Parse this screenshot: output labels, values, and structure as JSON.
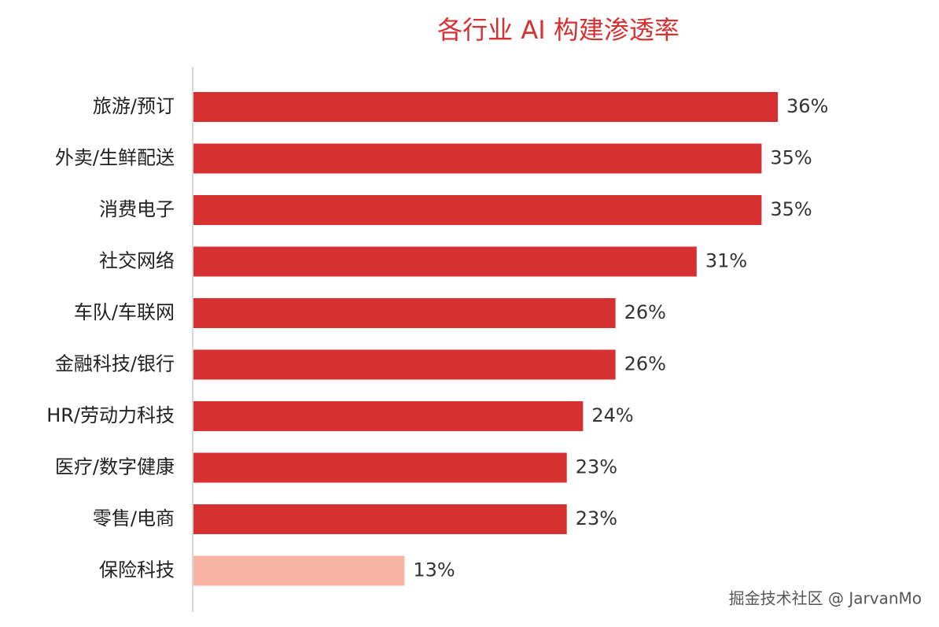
{
  "chart_data": {
    "type": "bar",
    "orientation": "horizontal",
    "title": "各行业 AI 构建渗透率",
    "categories": [
      "旅游/预订",
      "外卖/生鲜配送",
      "消费电子",
      "社交网络",
      "车队/车联网",
      "金融科技/银行",
      "HR/劳动力科技",
      "医疗/数字健康",
      "零售/电商",
      "保险科技"
    ],
    "values": [
      36,
      35,
      35,
      31,
      26,
      26,
      24,
      23,
      23,
      13
    ],
    "value_labels": [
      "36%",
      "35%",
      "35%",
      "31%",
      "26%",
      "26%",
      "24%",
      "23%",
      "23%",
      "13%"
    ],
    "colors": [
      "#d63031",
      "#d63031",
      "#d63031",
      "#d63031",
      "#d63031",
      "#d63031",
      "#d63031",
      "#d63031",
      "#d63031",
      "#f7b3a3"
    ]
  },
  "watermark": "掘金技术社区 @ JarvanMo"
}
